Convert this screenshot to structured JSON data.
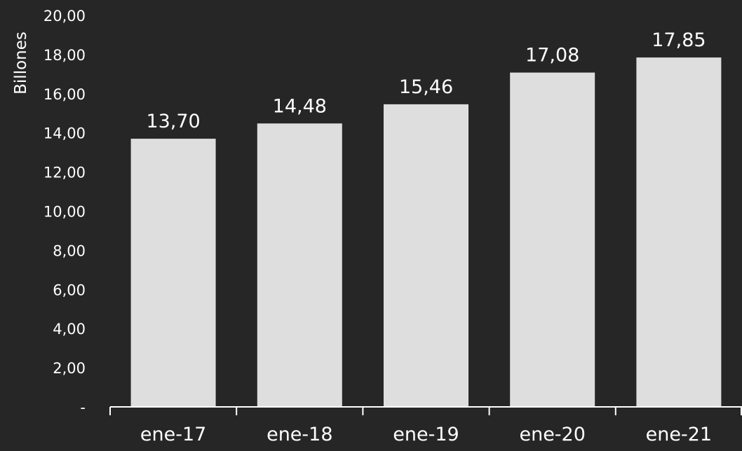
{
  "chart_data": {
    "type": "bar",
    "title": "",
    "xlabel": "",
    "ylabel": "Billones",
    "categories": [
      "ene-17",
      "ene-18",
      "ene-19",
      "ene-20",
      "ene-21"
    ],
    "values": [
      13.7,
      14.48,
      15.46,
      17.08,
      17.85
    ],
    "value_labels": [
      "13,70",
      "14,48",
      "15,46",
      "17,08",
      "17,85"
    ],
    "ylim": [
      0,
      20
    ],
    "yticks": [
      0,
      2,
      4,
      6,
      8,
      10,
      12,
      14,
      16,
      18,
      20
    ],
    "ytick_labels": [
      "-",
      "2,00",
      "4,00",
      "6,00",
      "8,00",
      "10,00",
      "12,00",
      "14,00",
      "16,00",
      "18,00",
      "20,00"
    ],
    "grid": false,
    "legend": "none"
  },
  "colors": {
    "background": "#262626",
    "bar": "#DEDEDE",
    "text": "#FFFFFF",
    "axis": "#FFFFFF"
  }
}
